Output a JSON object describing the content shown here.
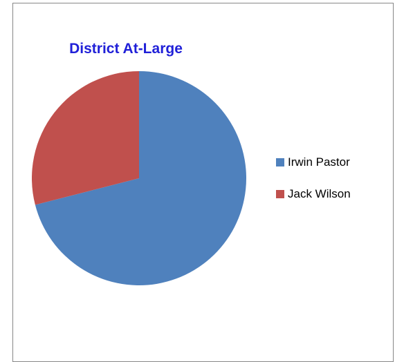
{
  "colors": {
    "title": "#2020d8",
    "border": "#868686"
  },
  "chart_data": {
    "type": "pie",
    "title": "District At-Large",
    "categories": [
      "Irwin Pastor",
      "Jack Wilson"
    ],
    "values": [
      71,
      29
    ],
    "colors": [
      "#4f81bd",
      "#c0504d"
    ],
    "start_angle_deg": 0,
    "direction": "clockwise",
    "legend": "right"
  }
}
